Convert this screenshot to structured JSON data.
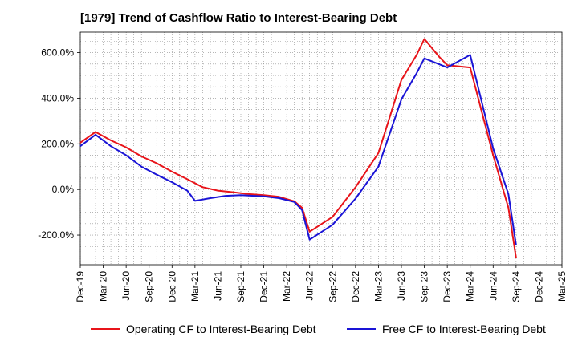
{
  "title": "[1979]  Trend of Cashflow Ratio to Interest-Bearing Debt",
  "colors": {
    "operating": "#e8141a",
    "free": "#1a14d6",
    "grid": "#8c8c8c",
    "axis": "#000000"
  },
  "chart_data": {
    "type": "line",
    "title": "[1979]  Trend of Cashflow Ratio to Interest-Bearing Debt",
    "xlabel": "",
    "ylabel": "",
    "ylim": [
      -330,
      690
    ],
    "y_ticks": [
      -200,
      0,
      200,
      400,
      600
    ],
    "y_tick_labels": [
      "-200.0%",
      "0.0%",
      "200.0%",
      "400.0%",
      "600.0%"
    ],
    "x_ticks": [
      "Dec-19",
      "Mar-20",
      "Jun-20",
      "Sep-20",
      "Dec-20",
      "Mar-21",
      "Jun-21",
      "Sep-21",
      "Dec-21",
      "Mar-22",
      "Jun-22",
      "Sep-22",
      "Dec-22",
      "Mar-23",
      "Jun-23",
      "Sep-23",
      "Dec-23",
      "Mar-24",
      "Jun-24",
      "Sep-24",
      "Dec-24",
      "Mar-25"
    ],
    "grid": true,
    "legend_position": "bottom",
    "series": [
      {
        "name": "Operating CF to Interest-Bearing Debt",
        "color": "#e8141a",
        "points": [
          [
            "Dec-19",
            205
          ],
          [
            "Feb-20",
            252
          ],
          [
            "Apr-20",
            215
          ],
          [
            "Jun-20",
            185
          ],
          [
            "Aug-20",
            145
          ],
          [
            "Oct-20",
            115
          ],
          [
            "Dec-20",
            78
          ],
          [
            "Feb-21",
            45
          ],
          [
            "Apr-21",
            10
          ],
          [
            "Jun-21",
            -5
          ],
          [
            "Aug-21",
            -12
          ],
          [
            "Oct-21",
            -20
          ],
          [
            "Dec-21",
            -25
          ],
          [
            "Feb-22",
            -32
          ],
          [
            "Apr-22",
            -52
          ],
          [
            "May-22",
            -80
          ],
          [
            "Jun-22",
            -185
          ],
          [
            "Sep-22",
            -120
          ],
          [
            "Dec-22",
            10
          ],
          [
            "Mar-23",
            160
          ],
          [
            "Jun-23",
            480
          ],
          [
            "Aug-23",
            590
          ],
          [
            "Sep-23",
            660
          ],
          [
            "Nov-23",
            580
          ],
          [
            "Dec-23",
            545
          ],
          [
            "Mar-24",
            535
          ],
          [
            "Jun-24",
            150
          ],
          [
            "Aug-24",
            -80
          ],
          [
            "Sep-24",
            -300
          ]
        ]
      },
      {
        "name": "Free CF to Interest-Bearing Debt",
        "color": "#1a14d6",
        "points": [
          [
            "Dec-19",
            190
          ],
          [
            "Feb-20",
            240
          ],
          [
            "Apr-20",
            190
          ],
          [
            "Jun-20",
            150
          ],
          [
            "Aug-20",
            100
          ],
          [
            "Oct-20",
            65
          ],
          [
            "Dec-20",
            32
          ],
          [
            "Feb-21",
            -5
          ],
          [
            "Mar-21",
            -50
          ],
          [
            "May-21",
            -38
          ],
          [
            "Jul-21",
            -28
          ],
          [
            "Sep-21",
            -25
          ],
          [
            "Dec-21",
            -30
          ],
          [
            "Feb-22",
            -38
          ],
          [
            "Apr-22",
            -55
          ],
          [
            "May-22",
            -90
          ],
          [
            "Jun-22",
            -220
          ],
          [
            "Sep-22",
            -155
          ],
          [
            "Dec-22",
            -40
          ],
          [
            "Mar-23",
            100
          ],
          [
            "Jun-23",
            395
          ],
          [
            "Aug-23",
            510
          ],
          [
            "Sep-23",
            575
          ],
          [
            "Dec-23",
            535
          ],
          [
            "Mar-24",
            590
          ],
          [
            "Jun-24",
            180
          ],
          [
            "Aug-24",
            -20
          ],
          [
            "Sep-24",
            -245
          ]
        ]
      }
    ]
  }
}
